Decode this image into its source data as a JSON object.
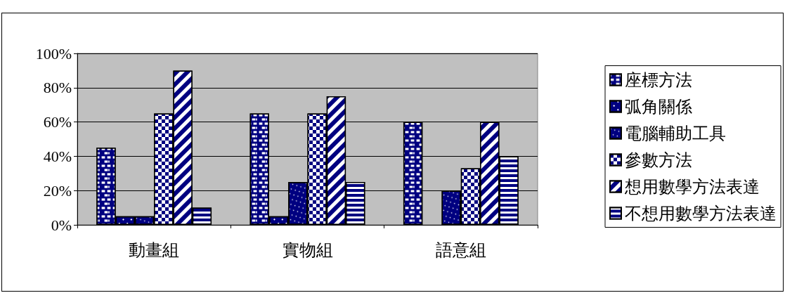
{
  "chart_data": {
    "type": "bar",
    "categories": [
      "動畫組",
      "實物組",
      "語意組"
    ],
    "series": [
      {
        "name": "座標方法",
        "color": "#000080",
        "values": [
          45,
          65,
          60
        ]
      },
      {
        "name": "弧角關係",
        "color": "#000080",
        "values": [
          5,
          5,
          0
        ]
      },
      {
        "name": "電腦輔助工具",
        "color": "#000080",
        "values": [
          5,
          25,
          20
        ]
      },
      {
        "name": "參數方法",
        "color": "#000080",
        "values": [
          65,
          65,
          33
        ]
      },
      {
        "name": "想用數學方法表達",
        "color": "#000080",
        "values": [
          90,
          75,
          60
        ]
      },
      {
        "name": "不想用數學方法表達",
        "color": "#000080",
        "values": [
          10,
          25,
          40
        ]
      }
    ],
    "ylim": [
      0,
      100
    ],
    "yticks": [
      {
        "value": 0,
        "label": "0%"
      },
      {
        "value": 20,
        "label": "20%"
      },
      {
        "value": 40,
        "label": "40%"
      },
      {
        "value": 60,
        "label": "60%"
      },
      {
        "value": 80,
        "label": "80%"
      },
      {
        "value": 100,
        "label": "100%"
      }
    ],
    "grid": "y",
    "legend": "right"
  }
}
